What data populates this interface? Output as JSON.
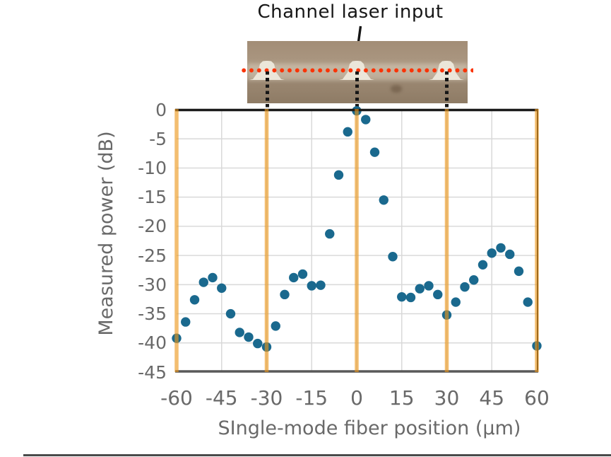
{
  "annotation": {
    "label": "Channel laser input"
  },
  "photo": {
    "description": "microscope image of three waveguide ridge channels",
    "ridge_count": 3,
    "colors": {
      "substrate_tan": "#a5907a",
      "substrate_dark": "#85735d",
      "ridge_white": "#ebe6d9",
      "scan_line_red": "#fa3306",
      "guide_line_black": "#161616"
    }
  },
  "chart_data": {
    "type": "scatter",
    "title": "",
    "xlabel": "SIngle-mode fiber position (μm)",
    "ylabel": "Measured power (dB)",
    "xlim": [
      -60,
      60
    ],
    "ylim": [
      -45,
      0
    ],
    "xticks": [
      -60,
      -45,
      -30,
      -15,
      0,
      15,
      30,
      45,
      60
    ],
    "yticks": [
      0,
      -5,
      -10,
      -15,
      -20,
      -25,
      -30,
      -35,
      -40,
      -45
    ],
    "grid": true,
    "legend": "none",
    "channel_positions": [
      -60,
      -30,
      0,
      30,
      60
    ],
    "colors": {
      "marker": "#1a698e",
      "channel_line": "#eb9619",
      "gridline": "#d9d9d9",
      "axis_text": "#696969",
      "frame_top": "#1a1a1a",
      "axis_bottom": "#595959"
    },
    "series": [
      {
        "name": "Measured power",
        "points": [
          [
            -60,
            -39.2
          ],
          [
            -57,
            -36.4
          ],
          [
            -54,
            -32.6
          ],
          [
            -51,
            -29.6
          ],
          [
            -48,
            -28.8
          ],
          [
            -45,
            -30.6
          ],
          [
            -42,
            -35.0
          ],
          [
            -39,
            -38.2
          ],
          [
            -36,
            -39.0
          ],
          [
            -33,
            -40.1
          ],
          [
            -30,
            -40.7
          ],
          [
            -27,
            -37.1
          ],
          [
            -24,
            -31.7
          ],
          [
            -21,
            -28.8
          ],
          [
            -18,
            -28.2
          ],
          [
            -15,
            -30.2
          ],
          [
            -12,
            -30.1
          ],
          [
            -9,
            -21.3
          ],
          [
            -6,
            -11.2
          ],
          [
            -3,
            -3.8
          ],
          [
            0,
            -0.2
          ],
          [
            3,
            -1.7
          ],
          [
            6,
            -7.3
          ],
          [
            9,
            -15.5
          ],
          [
            12,
            -25.2
          ],
          [
            15,
            -32.1
          ],
          [
            18,
            -32.2
          ],
          [
            21,
            -30.7
          ],
          [
            24,
            -30.2
          ],
          [
            27,
            -31.7
          ],
          [
            30,
            -35.2
          ],
          [
            33,
            -33.0
          ],
          [
            36,
            -30.4
          ],
          [
            39,
            -29.2
          ],
          [
            42,
            -26.6
          ],
          [
            45,
            -24.6
          ],
          [
            48,
            -23.7
          ],
          [
            51,
            -24.8
          ],
          [
            54,
            -27.7
          ],
          [
            57,
            -33.0
          ],
          [
            60,
            -40.5
          ]
        ]
      }
    ]
  }
}
